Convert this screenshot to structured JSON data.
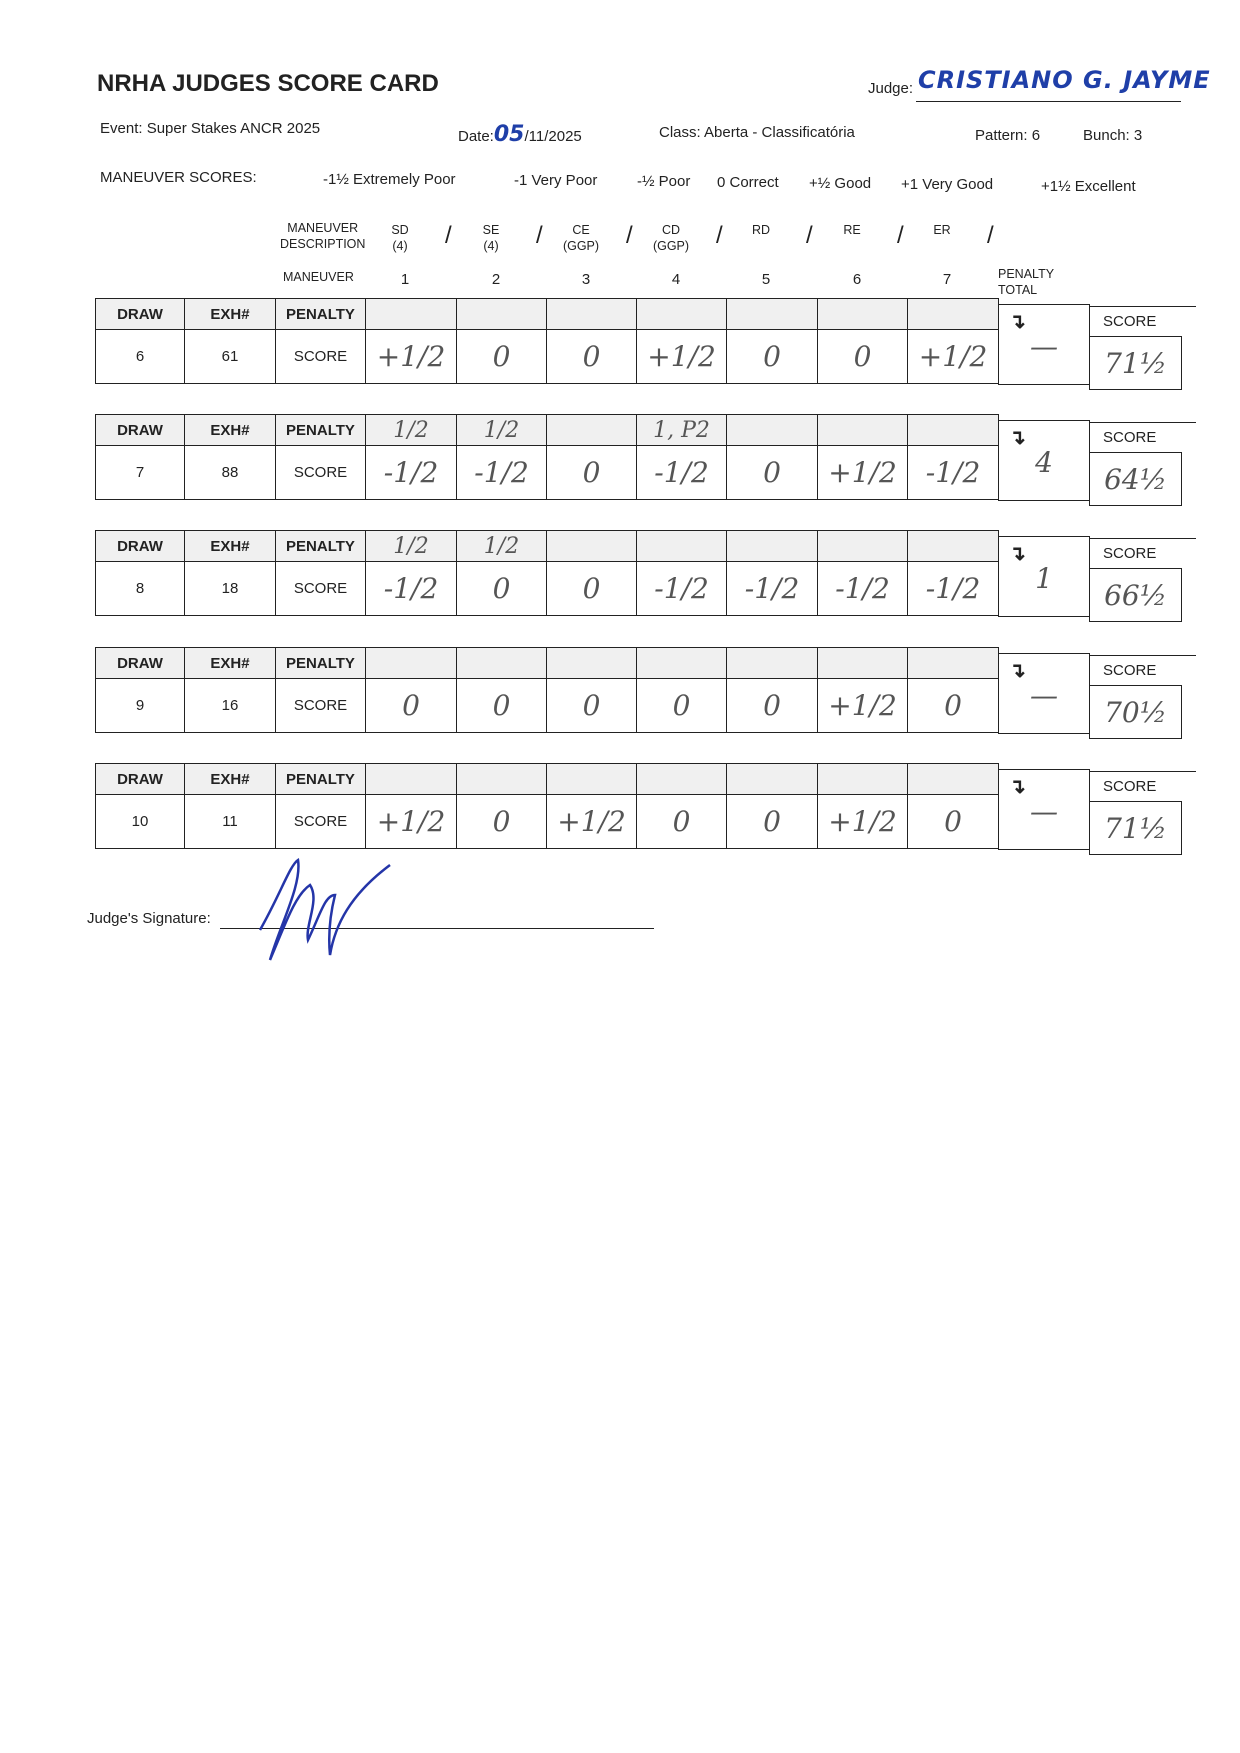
{
  "title": "NRHA JUDGES SCORE CARD",
  "judge": {
    "label": "Judge:",
    "name": "CRISTIANO G. JAYME"
  },
  "event": "Event: Super Stakes ANCR 2025",
  "date": {
    "label": "Date:",
    "day": "05",
    "rest": "/11/2025"
  },
  "class": "Class: Aberta - Classificatória",
  "pattern": "Pattern: 6",
  "bunch": "Bunch: 3",
  "maneuver_scores": {
    "label": "MANEUVER SCORES:",
    "items": [
      "-1½ Extremely Poor",
      "-1 Very Poor",
      "-½ Poor",
      "0 Correct",
      "+½ Good",
      "+1 Very Good",
      "+1½ Excellent"
    ]
  },
  "maneuver_description_label": "MANEUVER\nDESCRIPTION",
  "maneuver_label": "MANEUVER",
  "penalty_total_label": "PENALTY\nTOTAL",
  "maneuvers": [
    {
      "desc": "SD\n(4)",
      "num": "1"
    },
    {
      "desc": "SE\n(4)",
      "num": "2"
    },
    {
      "desc": "CE\n(GGP)",
      "num": "3"
    },
    {
      "desc": "CD\n(GGP)",
      "num": "4"
    },
    {
      "desc": "RD",
      "num": "5"
    },
    {
      "desc": "RE",
      "num": "6"
    },
    {
      "desc": "ER",
      "num": "7"
    }
  ],
  "headers": {
    "draw": "DRAW",
    "exh": "EXH#",
    "penalty": "PENALTY",
    "score_row": "SCORE",
    "score": "SCORE",
    "arrow": "↴"
  },
  "entries": [
    {
      "draw": "6",
      "exh": "61",
      "penalties": [
        "",
        "",
        "",
        "",
        "",
        "",
        ""
      ],
      "scores": [
        "+1/2",
        "0",
        "0",
        "+1/2",
        "0",
        "0",
        "+1/2"
      ],
      "penalty_total": "—",
      "score": "71½"
    },
    {
      "draw": "7",
      "exh": "88",
      "penalties": [
        "1/2",
        "1/2",
        "",
        "1, P2",
        "",
        "",
        ""
      ],
      "scores": [
        "-1/2",
        "-1/2",
        "0",
        "-1/2",
        "0",
        "+1/2",
        "-1/2"
      ],
      "penalty_total": "4",
      "score": "64½"
    },
    {
      "draw": "8",
      "exh": "18",
      "penalties": [
        "1/2",
        "1/2",
        "",
        "",
        "",
        "",
        ""
      ],
      "scores": [
        "-1/2",
        "0",
        "0",
        "-1/2",
        "-1/2",
        "-1/2",
        "-1/2"
      ],
      "penalty_total": "1",
      "score": "66½"
    },
    {
      "draw": "9",
      "exh": "16",
      "penalties": [
        "",
        "",
        "",
        "",
        "",
        "",
        ""
      ],
      "scores": [
        "0",
        "0",
        "0",
        "0",
        "0",
        "+1/2",
        "0"
      ],
      "penalty_total": "—",
      "score": "70½"
    },
    {
      "draw": "10",
      "exh": "11",
      "penalties": [
        "",
        "",
        "",
        "",
        "",
        "",
        ""
      ],
      "scores": [
        "+1/2",
        "0",
        "+1/2",
        "0",
        "0",
        "+1/2",
        "0"
      ],
      "penalty_total": "—",
      "score": "71½"
    }
  ],
  "signature_label": "Judge's Signature:"
}
